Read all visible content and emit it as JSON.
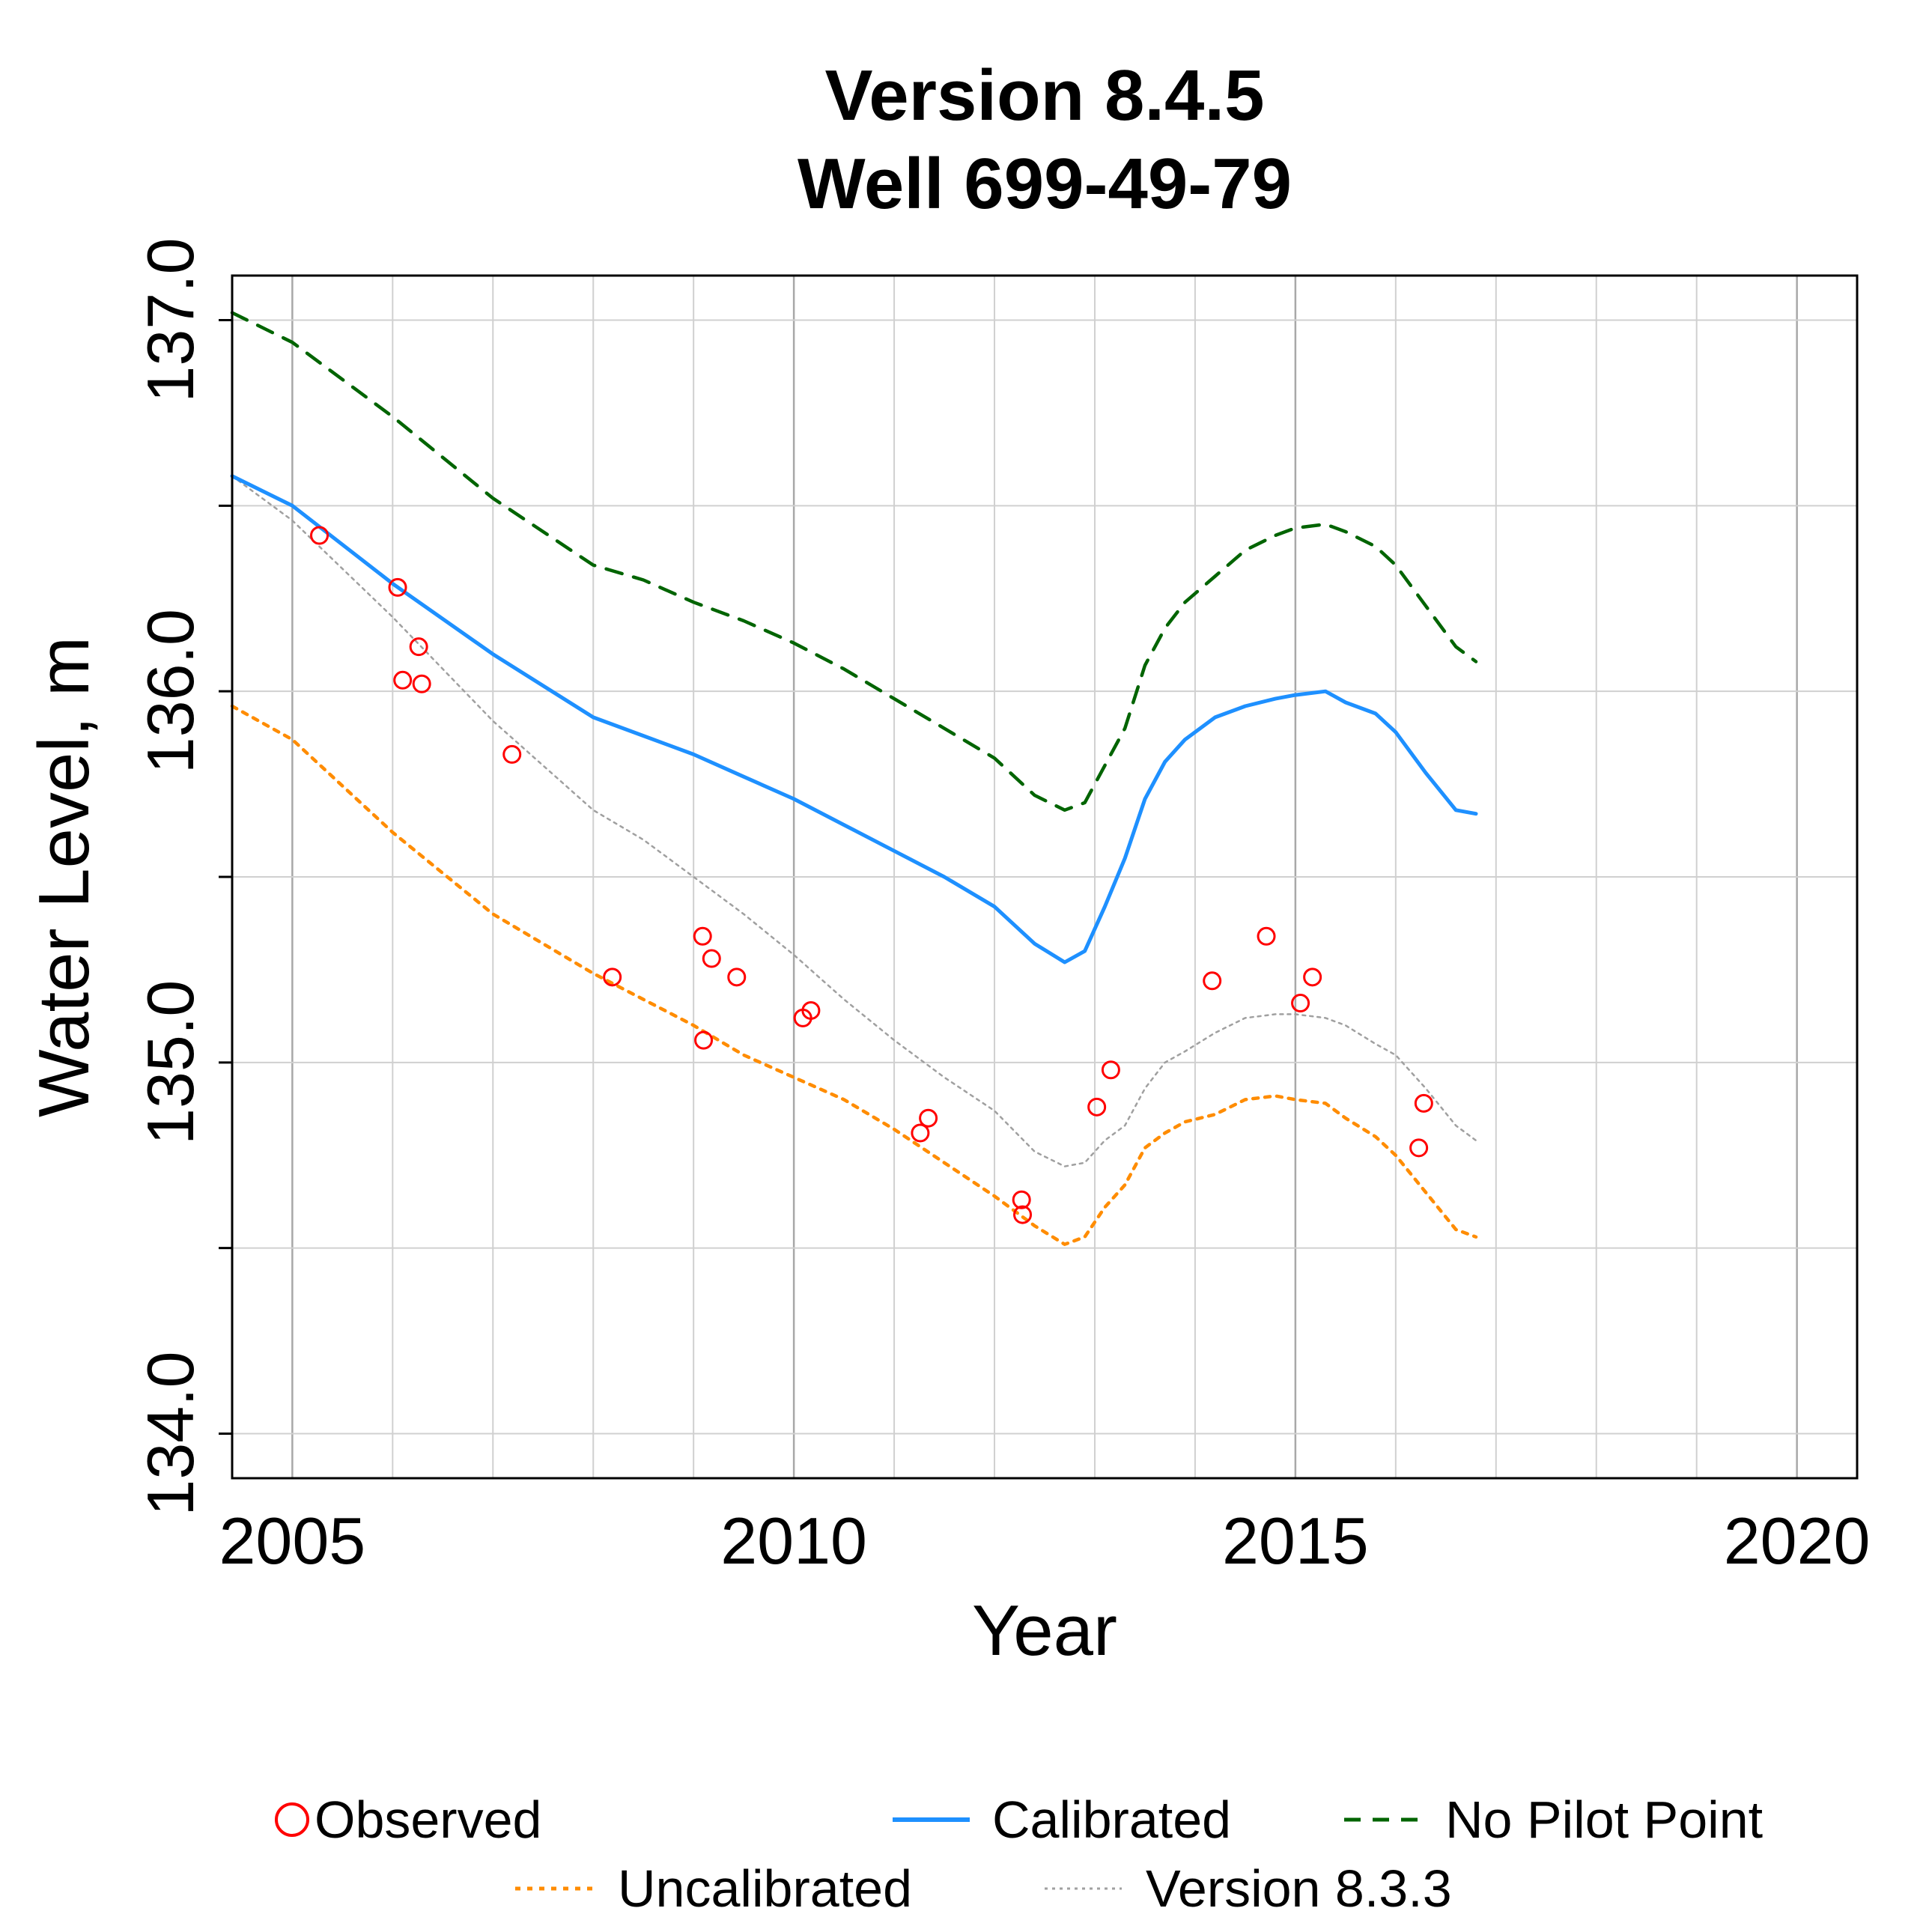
{
  "chart_data": {
    "type": "line",
    "title": "Version 8.4.5",
    "subtitle": "Well 699-49-79",
    "xlabel": "Year",
    "ylabel": "Water Level, m",
    "xlim": [
      2004.4,
      2020.6
    ],
    "ylim": [
      133.88,
      137.12
    ],
    "x_ticks": [
      2005,
      2010,
      2015,
      2020
    ],
    "x_tick_labels": [
      "2005",
      "2010",
      "2015",
      "2020"
    ],
    "y_ticks": [
      134.0,
      135.0,
      136.0,
      137.0
    ],
    "y_tick_labels": [
      "134.0",
      "135.0",
      "136.0",
      "137.0"
    ],
    "x_minor_grid": [
      2006,
      2007,
      2008,
      2009,
      2011,
      2012,
      2013,
      2014,
      2016,
      2017,
      2018,
      2019
    ],
    "y_minor_grid": [
      134.5,
      135.5,
      136.5
    ],
    "grid": true,
    "legend_position": "bottom",
    "series": [
      {
        "name": "Observed",
        "style": "points",
        "color": "#ff0000",
        "x": [
          2005.27,
          2006.05,
          2006.1,
          2006.26,
          2006.29,
          2007.19,
          2008.19,
          2009.09,
          2009.1,
          2009.18,
          2009.43,
          2010.09,
          2010.17,
          2011.26,
          2011.34,
          2012.27,
          2012.28,
          2013.02,
          2013.16,
          2014.17,
          2014.71,
          2015.05,
          2015.17,
          2016.23,
          2016.28
        ],
        "y": [
          136.42,
          136.28,
          136.03,
          136.12,
          136.02,
          135.83,
          135.23,
          135.34,
          135.06,
          135.28,
          135.23,
          135.12,
          135.14,
          134.81,
          134.85,
          134.63,
          134.59,
          134.88,
          134.98,
          135.22,
          135.34,
          135.16,
          135.23,
          134.77,
          134.89
        ]
      },
      {
        "name": "Calibrated",
        "style": "solid",
        "color": "#1e90ff",
        "x": [
          2004.4,
          2005.0,
          2006.0,
          2007.0,
          2008.0,
          2008.5,
          2009.0,
          2009.5,
          2010.0,
          2010.5,
          2011.0,
          2011.5,
          2012.0,
          2012.4,
          2012.7,
          2012.9,
          2013.1,
          2013.3,
          2013.5,
          2013.7,
          2013.9,
          2014.2,
          2014.5,
          2014.8,
          2015.0,
          2015.3,
          2015.5,
          2015.8,
          2016.0,
          2016.3,
          2016.6,
          2016.8
        ],
        "y": [
          136.58,
          136.5,
          136.29,
          136.1,
          135.93,
          135.88,
          135.83,
          135.77,
          135.71,
          135.64,
          135.57,
          135.5,
          135.42,
          135.32,
          135.27,
          135.3,
          135.42,
          135.55,
          135.71,
          135.81,
          135.87,
          135.93,
          135.96,
          135.98,
          135.99,
          136.0,
          135.97,
          135.94,
          135.89,
          135.78,
          135.68,
          135.67
        ]
      },
      {
        "name": "No Pilot Point",
        "style": "dashed",
        "color": "#006400",
        "x": [
          2004.4,
          2005.0,
          2006.0,
          2007.0,
          2008.0,
          2008.5,
          2009.0,
          2009.5,
          2010.0,
          2010.5,
          2011.0,
          2011.5,
          2012.0,
          2012.4,
          2012.7,
          2012.9,
          2013.1,
          2013.3,
          2013.5,
          2013.7,
          2013.9,
          2014.2,
          2014.5,
          2014.8,
          2015.0,
          2015.3,
          2015.5,
          2015.8,
          2016.0,
          2016.3,
          2016.6,
          2016.8
        ],
        "y": [
          137.02,
          136.94,
          136.74,
          136.52,
          136.34,
          136.3,
          136.24,
          136.19,
          136.13,
          136.06,
          135.98,
          135.9,
          135.82,
          135.72,
          135.68,
          135.7,
          135.8,
          135.9,
          136.07,
          136.17,
          136.24,
          136.31,
          136.38,
          136.42,
          136.44,
          136.45,
          136.43,
          136.39,
          136.34,
          136.23,
          136.12,
          136.08
        ]
      },
      {
        "name": "Uncalibrated",
        "style": "dotted",
        "color": "#ff8c00",
        "x": [
          2004.4,
          2005.0,
          2006.0,
          2007.0,
          2008.0,
          2008.5,
          2009.0,
          2009.5,
          2010.0,
          2010.5,
          2011.0,
          2011.5,
          2012.0,
          2012.4,
          2012.7,
          2012.9,
          2013.1,
          2013.3,
          2013.5,
          2013.7,
          2013.9,
          2014.2,
          2014.5,
          2014.8,
          2015.0,
          2015.3,
          2015.5,
          2015.8,
          2016.0,
          2016.3,
          2016.6,
          2016.8
        ],
        "y": [
          135.96,
          135.87,
          135.62,
          135.4,
          135.24,
          135.17,
          135.1,
          135.02,
          134.96,
          134.9,
          134.82,
          134.73,
          134.64,
          134.56,
          134.51,
          134.53,
          134.61,
          134.67,
          134.77,
          134.81,
          134.84,
          134.86,
          134.9,
          134.91,
          134.9,
          134.89,
          134.85,
          134.8,
          134.75,
          134.65,
          134.55,
          134.53
        ]
      },
      {
        "name": "Version 8.3.3",
        "style": "dotted-thin",
        "color": "#a0a0a0",
        "x": [
          2004.4,
          2005.0,
          2006.0,
          2007.0,
          2008.0,
          2008.5,
          2009.0,
          2009.5,
          2010.0,
          2010.5,
          2011.0,
          2011.5,
          2012.0,
          2012.4,
          2012.7,
          2012.9,
          2013.1,
          2013.3,
          2013.5,
          2013.7,
          2013.9,
          2014.2,
          2014.5,
          2014.8,
          2015.0,
          2015.3,
          2015.5,
          2015.8,
          2016.0,
          2016.3,
          2016.6,
          2016.8
        ],
        "y": [
          136.58,
          136.46,
          136.2,
          135.92,
          135.68,
          135.6,
          135.5,
          135.4,
          135.29,
          135.17,
          135.06,
          134.96,
          134.87,
          134.76,
          134.72,
          134.73,
          134.79,
          134.83,
          134.93,
          135.0,
          135.03,
          135.08,
          135.12,
          135.13,
          135.13,
          135.12,
          135.1,
          135.05,
          135.02,
          134.93,
          134.83,
          134.79
        ]
      }
    ]
  }
}
